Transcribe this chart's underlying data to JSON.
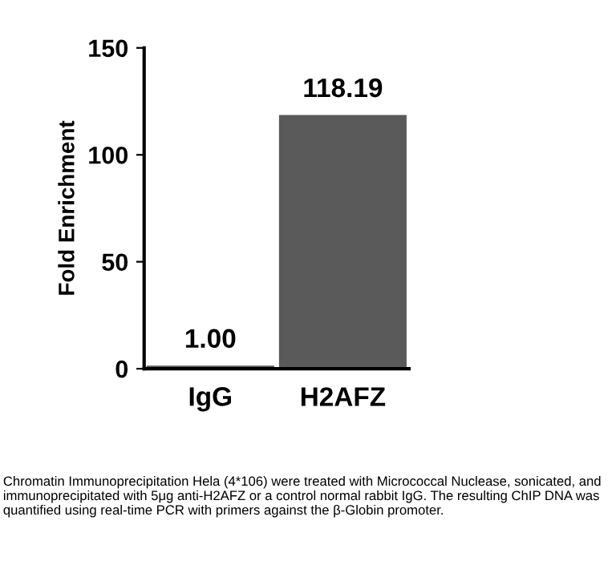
{
  "chart_data": {
    "type": "bar",
    "ylabel": "Fold Enrichment",
    "categories": [
      "IgG",
      "H2AFZ"
    ],
    "values": [
      1.0,
      118.19
    ],
    "color": "#5a5a5a",
    "value_labels": [
      "1.00",
      "118.19"
    ],
    "ylim": [
      0,
      150
    ],
    "yticks": [
      0,
      50,
      100,
      150
    ],
    "grid": false,
    "legend": false,
    "annotations": [
      "Chromatin Immunoprecipitation Hela (4*106) were treated with Micrococcal Nuclease, sonicated, and immunoprecipitated with 5μg anti-H2AFZ or a control normal rabbit IgG. The resulting ChIP DNA was quantified using real-time PCR with primers against the β-Globin promoter."
    ]
  }
}
